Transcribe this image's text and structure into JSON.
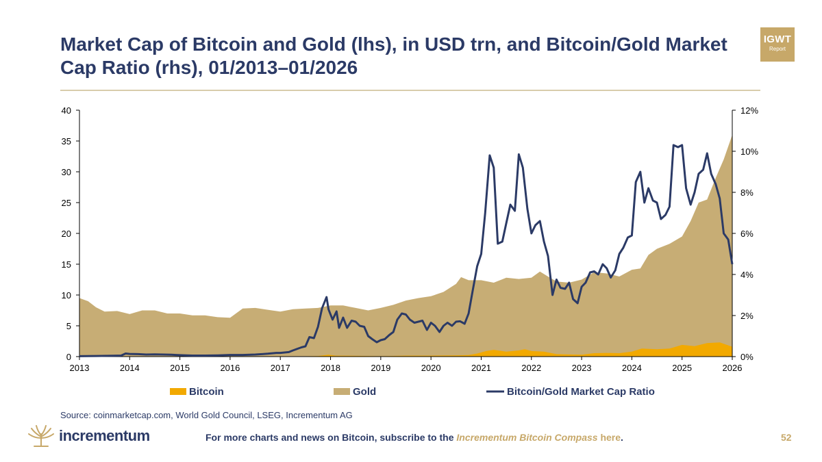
{
  "header": {
    "title": "Market Cap of Bitcoin and Gold (lhs), in USD trn, and Bitcoin/Gold Market Cap Ratio (rhs), 01/2013–01/2026",
    "badge_line1": "IGWT",
    "badge_line2": "Report"
  },
  "chart_data": {
    "type": "area",
    "title": "Market Cap of Bitcoin and Gold (lhs), in USD trn, and Bitcoin/Gold Market Cap Ratio (rhs), 01/2013–01/2026",
    "x_ticks": [
      "2013",
      "2014",
      "2015",
      "2016",
      "2017",
      "2018",
      "2019",
      "2020",
      "2021",
      "2022",
      "2023",
      "2024",
      "2025",
      "2026"
    ],
    "y_left_ticks": [
      "0",
      "5",
      "10",
      "15",
      "20",
      "25",
      "30",
      "35",
      "40"
    ],
    "y_right_ticks": [
      "0%",
      "2%",
      "4%",
      "6%",
      "8%",
      "10%",
      "12%"
    ],
    "xlim": [
      2013,
      2026
    ],
    "ylim_left": [
      0,
      40
    ],
    "ylim_right": [
      0,
      12
    ],
    "legend": [
      "Bitcoin",
      "Gold",
      "Bitcoin/Gold Market Cap Ratio"
    ],
    "legend_position": "bottom",
    "colors": {
      "bitcoin": "#f2a900",
      "gold": "#c7ad75",
      "ratio": "#2b3a66"
    },
    "series": [
      {
        "name": "Gold",
        "axis": "left",
        "style": "area",
        "x": [
          2013,
          2013.17,
          2013.33,
          2013.5,
          2013.75,
          2014,
          2014.25,
          2014.5,
          2014.75,
          2015,
          2015.25,
          2015.5,
          2015.75,
          2016,
          2016.25,
          2016.5,
          2016.75,
          2017,
          2017.25,
          2017.5,
          2017.75,
          2018,
          2018.25,
          2018.5,
          2018.75,
          2019,
          2019.25,
          2019.5,
          2019.75,
          2020,
          2020.25,
          2020.5,
          2020.6,
          2020.75,
          2021,
          2021.25,
          2021.5,
          2021.75,
          2022,
          2022.17,
          2022.33,
          2022.5,
          2022.75,
          2023,
          2023.25,
          2023.5,
          2023.75,
          2024,
          2024.17,
          2024.33,
          2024.5,
          2024.75,
          2025,
          2025.17,
          2025.33,
          2025.5,
          2025.67,
          2025.83,
          2026
        ],
        "values": [
          9.5,
          9.0,
          8.0,
          7.3,
          7.4,
          6.9,
          7.5,
          7.5,
          7.0,
          7.0,
          6.7,
          6.7,
          6.4,
          6.3,
          7.8,
          7.9,
          7.6,
          7.3,
          7.7,
          7.8,
          7.9,
          8.3,
          8.3,
          7.9,
          7.5,
          7.9,
          8.4,
          9.1,
          9.5,
          9.8,
          10.5,
          11.8,
          12.9,
          12.4,
          12.4,
          12.0,
          12.8,
          12.6,
          12.8,
          13.8,
          13.0,
          12.2,
          12.0,
          12.5,
          13.7,
          13.5,
          13.0,
          14.1,
          14.3,
          16.5,
          17.5,
          18.3,
          19.5,
          22.0,
          25.0,
          25.5,
          29.0,
          32.0,
          36.0
        ]
      },
      {
        "name": "Bitcoin",
        "axis": "left",
        "style": "area",
        "x": [
          2013,
          2013.5,
          2014,
          2014.5,
          2015,
          2015.5,
          2016,
          2016.5,
          2017,
          2017.25,
          2017.5,
          2017.75,
          2017.96,
          2018.1,
          2018.5,
          2019,
          2019.5,
          2020,
          2020.5,
          2020.75,
          2020.92,
          2021.1,
          2021.25,
          2021.5,
          2021.75,
          2021.87,
          2022,
          2022.25,
          2022.5,
          2022.75,
          2023,
          2023.25,
          2023.5,
          2023.75,
          2024,
          2024.2,
          2024.5,
          2024.75,
          2025,
          2025.25,
          2025.5,
          2025.75,
          2026
        ],
        "values": [
          0.01,
          0.01,
          0.01,
          0.01,
          0.01,
          0.01,
          0.01,
          0.01,
          0.02,
          0.02,
          0.05,
          0.1,
          0.3,
          0.15,
          0.12,
          0.07,
          0.15,
          0.15,
          0.2,
          0.25,
          0.5,
          0.9,
          1.1,
          0.8,
          1.0,
          1.2,
          0.9,
          0.8,
          0.4,
          0.35,
          0.3,
          0.55,
          0.6,
          0.55,
          0.8,
          1.3,
          1.2,
          1.3,
          1.9,
          1.7,
          2.2,
          2.3,
          1.6
        ]
      },
      {
        "name": "Bitcoin/Gold Market Cap Ratio",
        "axis": "right",
        "style": "line",
        "unit": "%",
        "x": [
          2013,
          2013.33,
          2013.67,
          2013.83,
          2013.92,
          2014,
          2014.17,
          2014.33,
          2014.5,
          2014.67,
          2014.83,
          2015,
          2015.25,
          2015.5,
          2015.75,
          2016,
          2016.25,
          2016.5,
          2016.75,
          2016.92,
          2017,
          2017.17,
          2017.25,
          2017.42,
          2017.5,
          2017.58,
          2017.67,
          2017.75,
          2017.83,
          2017.92,
          2017.96,
          2018.04,
          2018.12,
          2018.17,
          2018.25,
          2018.33,
          2018.42,
          2018.5,
          2018.58,
          2018.67,
          2018.75,
          2018.83,
          2018.92,
          2019,
          2019.08,
          2019.17,
          2019.25,
          2019.33,
          2019.42,
          2019.5,
          2019.58,
          2019.67,
          2019.75,
          2019.83,
          2019.92,
          2020,
          2020.08,
          2020.17,
          2020.25,
          2020.33,
          2020.42,
          2020.5,
          2020.58,
          2020.67,
          2020.75,
          2020.83,
          2020.92,
          2021,
          2021.08,
          2021.17,
          2021.25,
          2021.33,
          2021.42,
          2021.5,
          2021.58,
          2021.67,
          2021.75,
          2021.83,
          2021.92,
          2022,
          2022.08,
          2022.17,
          2022.25,
          2022.33,
          2022.42,
          2022.5,
          2022.58,
          2022.67,
          2022.75,
          2022.83,
          2022.92,
          2023,
          2023.08,
          2023.17,
          2023.25,
          2023.33,
          2023.42,
          2023.5,
          2023.58,
          2023.67,
          2023.75,
          2023.83,
          2023.92,
          2024,
          2024.08,
          2024.17,
          2024.25,
          2024.33,
          2024.42,
          2024.5,
          2024.58,
          2024.67,
          2024.75,
          2024.83,
          2024.92,
          2025,
          2025.08,
          2025.17,
          2025.25,
          2025.33,
          2025.42,
          2025.5,
          2025.58,
          2025.67,
          2025.75,
          2025.83,
          2025.92,
          2026
        ],
        "values": [
          0.02,
          0.03,
          0.04,
          0.05,
          0.15,
          0.13,
          0.12,
          0.1,
          0.11,
          0.1,
          0.09,
          0.07,
          0.05,
          0.05,
          0.06,
          0.08,
          0.08,
          0.1,
          0.14,
          0.18,
          0.18,
          0.22,
          0.3,
          0.45,
          0.5,
          0.95,
          0.9,
          1.45,
          2.35,
          2.9,
          2.3,
          1.8,
          2.2,
          1.4,
          1.9,
          1.4,
          1.75,
          1.7,
          1.5,
          1.45,
          1.0,
          0.85,
          0.7,
          0.8,
          0.85,
          1.05,
          1.2,
          1.8,
          2.1,
          2.05,
          1.8,
          1.65,
          1.7,
          1.75,
          1.3,
          1.65,
          1.5,
          1.2,
          1.5,
          1.65,
          1.5,
          1.7,
          1.72,
          1.6,
          2.1,
          3.2,
          4.4,
          5.0,
          7.0,
          9.8,
          9.2,
          5.5,
          5.6,
          6.5,
          7.4,
          7.1,
          9.85,
          9.2,
          7.2,
          6.0,
          6.4,
          6.6,
          5.6,
          4.9,
          3.0,
          3.75,
          3.35,
          3.3,
          3.6,
          2.8,
          2.6,
          3.4,
          3.6,
          4.1,
          4.15,
          4.0,
          4.5,
          4.3,
          3.85,
          4.2,
          5.0,
          5.3,
          5.8,
          5.9,
          8.5,
          9.0,
          7.5,
          8.2,
          7.6,
          7.5,
          6.7,
          6.9,
          7.3,
          10.3,
          10.2,
          10.3,
          8.2,
          7.4,
          8.0,
          8.9,
          9.1,
          9.9,
          8.9,
          8.4,
          7.7,
          6.0,
          5.7,
          4.5
        ]
      }
    ]
  },
  "source": "Source: coinmarketcap.com, World Gold Council, LSEG, Incrementum AG",
  "brand": {
    "logo_text": "incrementum"
  },
  "footer": {
    "prefix": "For more charts and news on Bitcoin, subscribe to the ",
    "link_text": "Incrementum Bitcoin Compass",
    "here": "here",
    "suffix": "."
  },
  "page_number": "52"
}
